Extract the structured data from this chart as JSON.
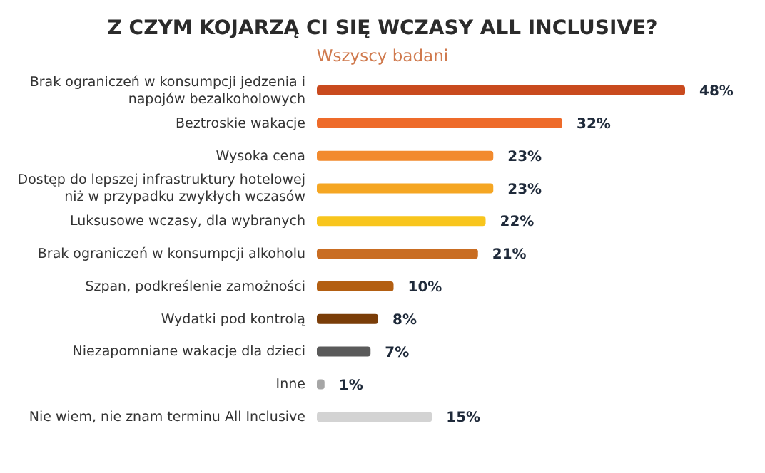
{
  "chart_data": {
    "type": "bar",
    "orientation": "horizontal",
    "title": "Z CZYM KOJARZĄ CI SIĘ WCZASY ALL INCLUSIVE?",
    "subtitle": "Wszyscy badani",
    "categories": [
      "Brak ograniczeń w konsumpcji jedzenia i napojów bezalkoholowych",
      "Beztroskie wakacje",
      "Wysoka cena",
      "Dostęp do lepszej infrastruktury hotelowej niż w przypadku zwykłych wczasów",
      "Luksusowe wczasy, dla wybranych",
      "Brak ograniczeń w konsumpcji alkoholu",
      "Szpan, podkreślenie zamożności",
      "Wydatki pod kontrolą",
      "Niezapomniane wakacje dla dzieci",
      "Inne",
      "Nie wiem, nie znam terminu All Inclusive"
    ],
    "values": [
      48,
      32,
      23,
      23,
      22,
      21,
      10,
      8,
      7,
      1,
      15
    ],
    "colors": [
      "#c94a1e",
      "#ee6b2a",
      "#f28a2e",
      "#f5a623",
      "#f8c51c",
      "#c96d22",
      "#b35f12",
      "#7a3d08",
      "#5a5a5a",
      "#a6a6a6",
      "#d3d3d3"
    ],
    "value_labels": [
      "48%",
      "32%",
      "23%",
      "23%",
      "22%",
      "21%",
      "10%",
      "8%",
      "7%",
      "1%",
      "15%"
    ],
    "grid": false,
    "legend": false
  }
}
